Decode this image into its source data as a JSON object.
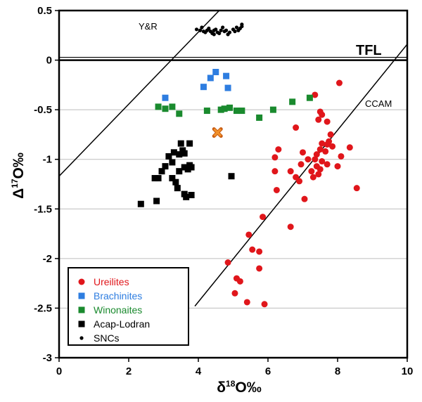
{
  "chart_data": {
    "type": "scatter",
    "xlabel": {
      "pre": "δ",
      "sup": "18",
      "post": "O‰"
    },
    "ylabel": {
      "pre": "Δ",
      "sup": "17",
      "post": "O‰"
    },
    "xlim": [
      0,
      10
    ],
    "ylim": [
      -3,
      0.5
    ],
    "x_ticks": [
      "0",
      "2",
      "4",
      "6",
      "8",
      "10"
    ],
    "y_ticks": [
      "0.5",
      "0",
      "-0.5",
      "-1",
      "-1.5",
      "-2",
      "-2.5",
      "-3"
    ],
    "grid": "horizontal",
    "legend_position": "bottom-left",
    "annotations": {
      "yr": "Y&R",
      "tfl": "TFL",
      "ccam": "CCAM"
    },
    "reference_lines": [
      {
        "name": "Y&R",
        "points": [
          [
            0,
            -1.17
          ],
          [
            4.6,
            0.5
          ]
        ]
      },
      {
        "name": "CCAM",
        "points": [
          [
            3.9,
            -2.48
          ],
          [
            10,
            0.16
          ]
        ]
      },
      {
        "name": "TFL",
        "points": [
          [
            0,
            0
          ],
          [
            10,
            0
          ]
        ]
      }
    ],
    "series": [
      {
        "name": "Ureilites",
        "marker": "circle",
        "color": "#e0161b",
        "points": [
          [
            8.05,
            -0.23
          ],
          [
            7.35,
            -0.35
          ],
          [
            7.5,
            -0.52
          ],
          [
            7.55,
            -0.55
          ],
          [
            7.45,
            -0.6
          ],
          [
            7.7,
            -0.62
          ],
          [
            7.8,
            -0.75
          ],
          [
            7.75,
            -0.82
          ],
          [
            7.7,
            -0.85
          ],
          [
            7.85,
            -0.87
          ],
          [
            7.55,
            -0.84
          ],
          [
            7.5,
            -0.9
          ],
          [
            7.65,
            -0.92
          ],
          [
            7.4,
            -0.95
          ],
          [
            7.35,
            -1.0
          ],
          [
            7.55,
            -1.02
          ],
          [
            7.7,
            -1.05
          ],
          [
            7.4,
            -1.07
          ],
          [
            7.5,
            -1.1
          ],
          [
            7.25,
            -1.12
          ],
          [
            7.3,
            -1.18
          ],
          [
            7.45,
            -1.15
          ],
          [
            6.8,
            -0.68
          ],
          [
            6.3,
            -0.9
          ],
          [
            6.2,
            -0.98
          ],
          [
            7.0,
            -0.93
          ],
          [
            7.15,
            -1.0
          ],
          [
            6.95,
            -1.05
          ],
          [
            6.65,
            -1.12
          ],
          [
            6.8,
            -1.18
          ],
          [
            6.9,
            -1.22
          ],
          [
            6.2,
            -1.12
          ],
          [
            6.25,
            -1.31
          ],
          [
            7.05,
            -1.4
          ],
          [
            6.65,
            -1.68
          ],
          [
            5.85,
            -1.58
          ],
          [
            5.45,
            -1.76
          ],
          [
            5.55,
            -1.91
          ],
          [
            5.75,
            -1.93
          ],
          [
            5.75,
            -2.1
          ],
          [
            4.85,
            -2.04
          ],
          [
            5.1,
            -2.2
          ],
          [
            5.2,
            -2.23
          ],
          [
            5.05,
            -2.35
          ],
          [
            5.4,
            -2.44
          ],
          [
            5.9,
            -2.46
          ],
          [
            8.1,
            -0.97
          ],
          [
            8.35,
            -0.88
          ],
          [
            8.55,
            -1.29
          ],
          [
            8.0,
            -1.07
          ]
        ]
      },
      {
        "name": "Brachinites",
        "marker": "square",
        "color": "#2e7de0",
        "points": [
          [
            3.05,
            -0.38
          ],
          [
            4.15,
            -0.27
          ],
          [
            4.35,
            -0.18
          ],
          [
            4.5,
            -0.12
          ],
          [
            4.8,
            -0.16
          ],
          [
            4.85,
            -0.28
          ]
        ]
      },
      {
        "name": "Winonaites",
        "marker": "square",
        "color": "#1a8a2e",
        "points": [
          [
            2.85,
            -0.47
          ],
          [
            3.05,
            -0.49
          ],
          [
            3.25,
            -0.47
          ],
          [
            3.45,
            -0.54
          ],
          [
            4.25,
            -0.51
          ],
          [
            4.65,
            -0.5
          ],
          [
            4.75,
            -0.49
          ],
          [
            4.9,
            -0.48
          ],
          [
            5.1,
            -0.51
          ],
          [
            5.25,
            -0.51
          ],
          [
            5.75,
            -0.58
          ],
          [
            6.15,
            -0.5
          ],
          [
            6.7,
            -0.42
          ],
          [
            7.2,
            -0.38
          ]
        ]
      },
      {
        "name": "Acap-Lodran",
        "marker": "square",
        "color": "#000000",
        "points": [
          [
            2.35,
            -1.45
          ],
          [
            2.8,
            -1.42
          ],
          [
            2.75,
            -1.19
          ],
          [
            2.85,
            -1.19
          ],
          [
            2.95,
            -1.12
          ],
          [
            3.05,
            -1.07
          ],
          [
            3.25,
            -1.03
          ],
          [
            3.15,
            -0.97
          ],
          [
            3.3,
            -0.93
          ],
          [
            3.45,
            -0.95
          ],
          [
            3.55,
            -0.91
          ],
          [
            3.6,
            -0.94
          ],
          [
            3.5,
            -0.84
          ],
          [
            3.75,
            -0.84
          ],
          [
            3.45,
            -1.12
          ],
          [
            3.6,
            -1.08
          ],
          [
            3.75,
            -1.06
          ],
          [
            3.8,
            -1.08
          ],
          [
            3.7,
            -1.1
          ],
          [
            3.25,
            -1.19
          ],
          [
            3.35,
            -1.23
          ],
          [
            3.4,
            -1.29
          ],
          [
            3.6,
            -1.35
          ],
          [
            3.65,
            -1.38
          ],
          [
            3.8,
            -1.36
          ],
          [
            4.95,
            -1.17
          ]
        ]
      },
      {
        "name": "SNCs",
        "marker": "dot",
        "color": "#000000",
        "points": [
          [
            3.95,
            0.31
          ],
          [
            4.05,
            0.3
          ],
          [
            4.15,
            0.29
          ],
          [
            4.2,
            0.28
          ],
          [
            4.25,
            0.3
          ],
          [
            4.3,
            0.32
          ],
          [
            4.35,
            0.29
          ],
          [
            4.4,
            0.27
          ],
          [
            4.45,
            0.3
          ],
          [
            4.5,
            0.31
          ],
          [
            4.55,
            0.28
          ],
          [
            4.6,
            0.27
          ],
          [
            4.65,
            0.3
          ],
          [
            4.7,
            0.33
          ],
          [
            4.75,
            0.29
          ],
          [
            4.8,
            0.3
          ],
          [
            4.9,
            0.28
          ],
          [
            5.0,
            0.31
          ],
          [
            5.05,
            0.29
          ],
          [
            5.1,
            0.33
          ],
          [
            5.15,
            0.3
          ],
          [
            5.2,
            0.32
          ],
          [
            5.25,
            0.34
          ],
          [
            5.25,
            0.36
          ],
          [
            4.1,
            0.33
          ],
          [
            4.45,
            0.26
          ],
          [
            4.85,
            0.26
          ]
        ]
      },
      {
        "name": "",
        "marker": "x",
        "color": "#f0902a",
        "points": [
          [
            4.55,
            -0.73
          ]
        ]
      }
    ]
  }
}
